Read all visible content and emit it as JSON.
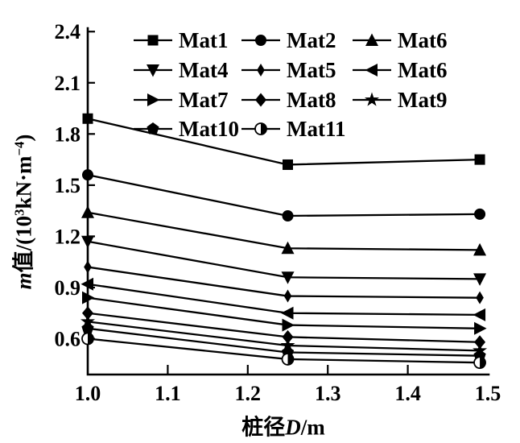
{
  "figure": {
    "background": "#ffffff",
    "ink": "#000000"
  },
  "chart_data": {
    "type": "line",
    "x": [
      1.0,
      1.25,
      1.49
    ],
    "xlabel": "桩径D/m",
    "ylabel": "m值/(10³kN·m⁻⁴)",
    "xlabel_parts": {
      "prefix": "桩径",
      "italic": "D",
      "suffix": "/m"
    },
    "ylabel_parts": {
      "italic": "m",
      "text": "值/(10",
      "sup1": "3",
      "mid": "kN·m",
      "sup2": "−4",
      "close": ")"
    },
    "x_tick_labels": [
      "1.0",
      "1.1",
      "1.2",
      "1.3",
      "1.4",
      "1.5"
    ],
    "x_tick_values": [
      1.0,
      1.1,
      1.2,
      1.3,
      1.4,
      1.5
    ],
    "y_tick_labels": [
      "0.6",
      "0.9",
      "1.2",
      "1.5",
      "1.8",
      "2.1",
      "2.4"
    ],
    "y_tick_values": [
      0.6,
      0.9,
      1.2,
      1.5,
      1.8,
      2.1,
      2.4
    ],
    "xlim": [
      1.0,
      1.501
    ],
    "ylim": [
      0.39,
      2.42
    ],
    "grid": false,
    "line_color": "#000000",
    "legend_position": "top-inside-no-frame",
    "series": [
      {
        "name": "Mat1",
        "marker": "square",
        "values": [
          1.89,
          1.62,
          1.65
        ]
      },
      {
        "name": "Mat2",
        "marker": "circle",
        "values": [
          1.56,
          1.32,
          1.33
        ]
      },
      {
        "name": "Mat6",
        "marker": "triangle-up",
        "values": [
          1.34,
          1.13,
          1.12
        ]
      },
      {
        "name": "Mat4",
        "marker": "triangle-down",
        "values": [
          1.17,
          0.96,
          0.95
        ]
      },
      {
        "name": "Mat5",
        "marker": "diamond-thin",
        "values": [
          1.02,
          0.85,
          0.84
        ]
      },
      {
        "name": "Mat6",
        "marker": "triangle-left",
        "values": [
          0.92,
          0.75,
          0.74
        ]
      },
      {
        "name": "Mat7",
        "marker": "triangle-right",
        "values": [
          0.84,
          0.68,
          0.66
        ]
      },
      {
        "name": "Mat8",
        "marker": "diamond",
        "values": [
          0.75,
          0.61,
          0.58
        ]
      },
      {
        "name": "Mat9",
        "marker": "star",
        "values": [
          0.7,
          0.56,
          0.53
        ]
      },
      {
        "name": "Mat10",
        "marker": "pentagon",
        "values": [
          0.66,
          0.52,
          0.5
        ]
      },
      {
        "name": "Mat11",
        "marker": "circle-half",
        "values": [
          0.6,
          0.48,
          0.46
        ]
      }
    ],
    "legend_rows": [
      [
        0,
        1,
        2
      ],
      [
        3,
        4,
        5
      ],
      [
        6,
        7,
        8
      ],
      [
        9,
        10
      ]
    ]
  }
}
